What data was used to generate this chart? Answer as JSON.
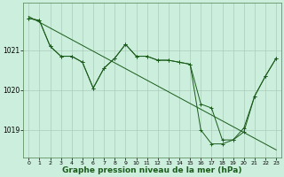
{
  "background_color": "#cceedd",
  "line_color": "#1a5c1a",
  "grid_color": "#aaccbb",
  "xlabel": "Graphe pression niveau de la mer (hPa)",
  "xlabel_fontsize": 6.5,
  "xlim": [
    -0.5,
    23.5
  ],
  "ylim": [
    1018.3,
    1022.2
  ],
  "yticks": [
    1019,
    1020,
    1021
  ],
  "xticks": [
    0,
    1,
    2,
    3,
    4,
    5,
    6,
    7,
    8,
    9,
    10,
    11,
    12,
    13,
    14,
    15,
    16,
    17,
    18,
    19,
    20,
    21,
    22,
    23
  ],
  "series1_x": [
    0,
    1,
    2,
    3,
    4,
    5,
    6,
    7,
    8,
    9,
    10,
    11,
    12,
    13,
    14,
    15,
    16,
    17,
    18,
    19,
    20,
    21,
    22,
    23
  ],
  "series1_y": [
    1021.8,
    1021.75,
    1021.1,
    1020.85,
    1020.85,
    1020.7,
    1020.05,
    1020.55,
    1020.8,
    1021.15,
    1020.85,
    1020.85,
    1020.75,
    1020.75,
    1020.7,
    1020.65,
    1019.65,
    1019.55,
    1018.75,
    1018.75,
    1019.05,
    1019.85,
    1020.35,
    1020.8
  ],
  "series2_x": [
    0,
    1,
    2,
    3,
    4,
    5,
    6,
    7,
    8,
    9,
    10,
    11,
    12,
    13,
    14,
    15,
    16,
    17,
    18,
    19,
    20,
    21,
    22,
    23
  ],
  "series2_y": [
    1021.8,
    1021.75,
    1021.1,
    1020.85,
    1020.85,
    1020.7,
    1020.05,
    1020.55,
    1020.8,
    1021.15,
    1020.85,
    1020.85,
    1020.75,
    1020.75,
    1020.7,
    1020.65,
    1019.0,
    1018.65,
    1018.65,
    1018.75,
    1018.95,
    1019.85,
    1020.35,
    1020.8
  ],
  "series3_x": [
    0,
    23
  ],
  "series3_y": [
    1021.85,
    1018.5
  ]
}
